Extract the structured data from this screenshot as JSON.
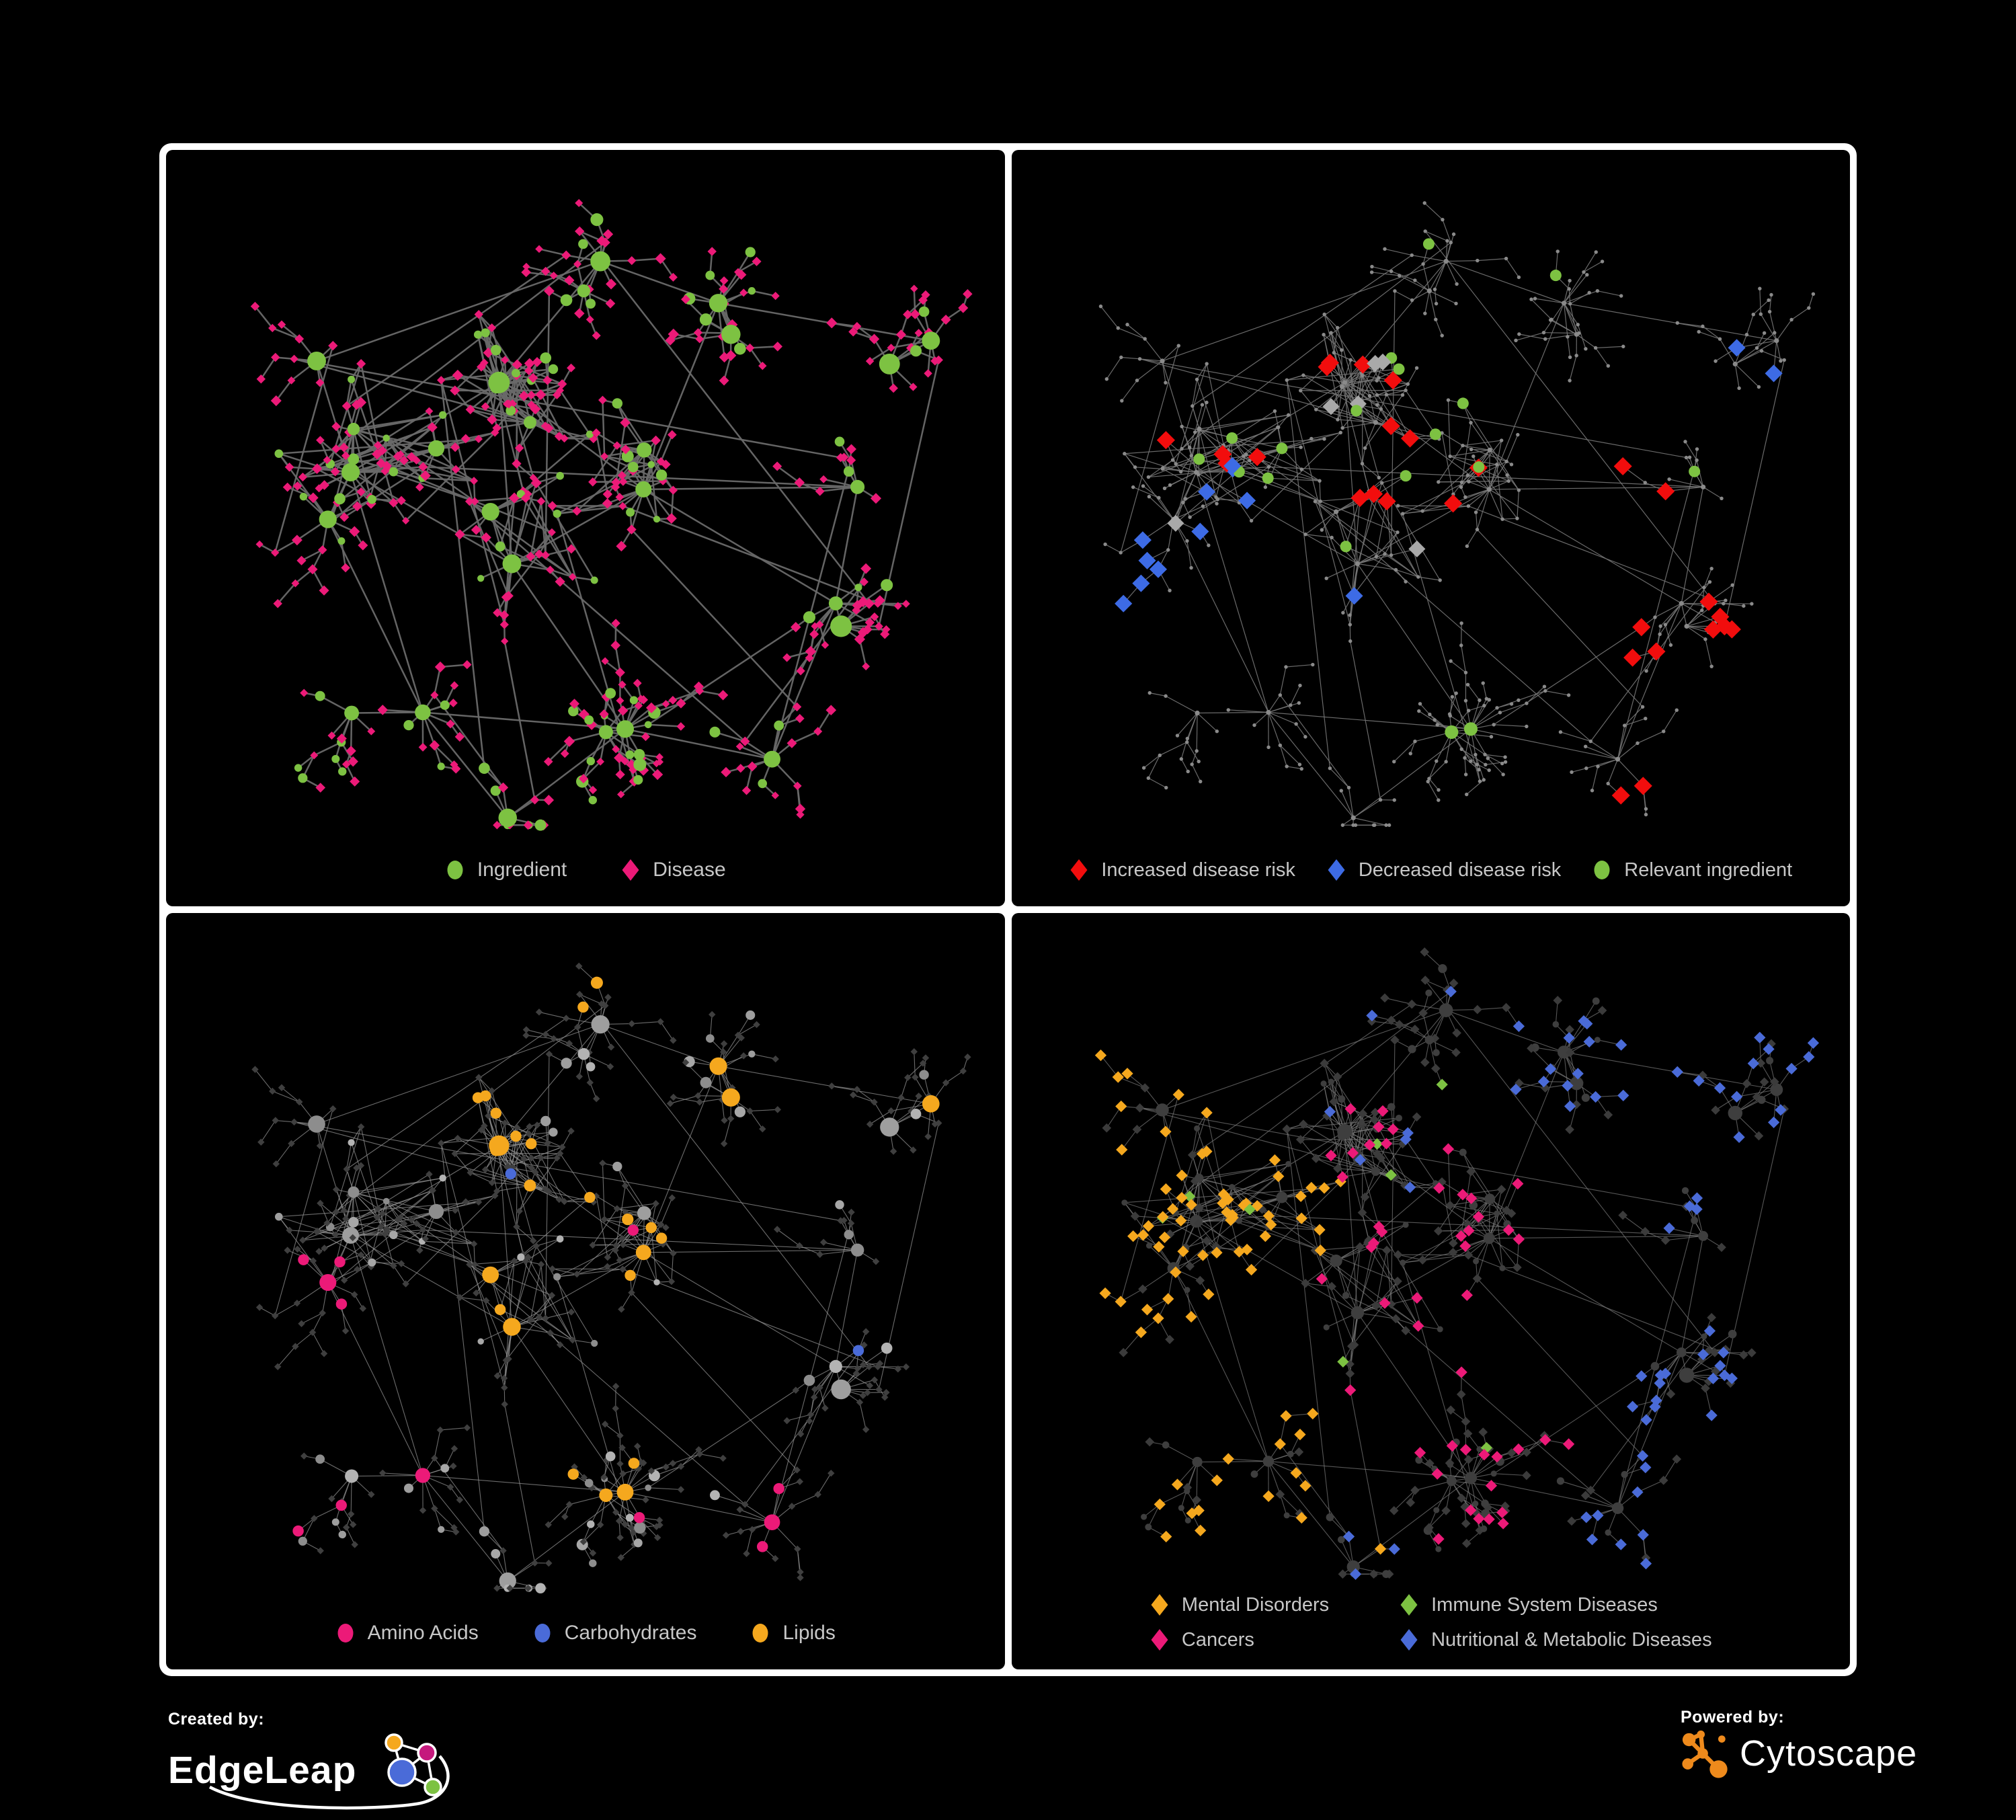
{
  "panels": [
    {
      "id": "ingredient-disease",
      "legend_layout": "row",
      "legend": [
        {
          "shape": "circle",
          "color": "#7DC242",
          "label": "Ingredient"
        },
        {
          "shape": "diamond",
          "color": "#EC1A78",
          "label": "Disease"
        }
      ],
      "style": {
        "mode": "two-tone",
        "edge": {
          "color": "#696969",
          "width": 2.5,
          "opacity": 0.95
        },
        "colors": {
          "circle": "#7DC242",
          "diamond": "#EC1A78"
        }
      }
    },
    {
      "id": "disease-risk",
      "legend_layout": "row-tight",
      "legend": [
        {
          "shape": "diamond",
          "color": "#F20D0D",
          "label": "Increased disease risk"
        },
        {
          "shape": "diamond",
          "color": "#3D6BE5",
          "label": "Decreased disease risk"
        },
        {
          "shape": "circle",
          "color": "#7DC242",
          "label": "Relevant ingredient"
        }
      ],
      "style": {
        "mode": "risk",
        "edge": {
          "color": "#757575",
          "width": 1.2,
          "opacity": 0.9
        },
        "colors": {
          "base": "#8A8A8A",
          "increased": "#F20D0D",
          "decreased": "#3D6BE5",
          "unchanged": "#A9A9A9",
          "relevant": "#7DC242"
        }
      }
    },
    {
      "id": "macronutrients",
      "legend_layout": "row",
      "legend": [
        {
          "shape": "circle",
          "color": "#EC1A78",
          "label": "Amino Acids"
        },
        {
          "shape": "circle",
          "color": "#4A6BD8",
          "label": "Carbohydrates"
        },
        {
          "shape": "circle",
          "color": "#F5A81E",
          "label": "Lipids"
        }
      ],
      "style": {
        "mode": "nutrients",
        "edge": {
          "color": "#8F8F8F",
          "width": 1.1,
          "opacity": 0.75
        },
        "colors": {
          "amino_acids": "#EC1A78",
          "carbohydrates": "#4A6BD8",
          "lipids": "#F5A81E",
          "other_diamond": "#3F3F3F",
          "grays": [
            "#9E9E9E",
            "#8D8D8D",
            "#B3B3B3",
            "#A7A7A7"
          ]
        }
      }
    },
    {
      "id": "disease-classes",
      "legend_layout": "grid2",
      "legend": [
        {
          "shape": "diamond",
          "color": "#F5A81E",
          "label": "Mental Disorders"
        },
        {
          "shape": "diamond",
          "color": "#7DC242",
          "label": "Immune System Diseases"
        },
        {
          "shape": "diamond",
          "color": "#EC1A78",
          "label": "Cancers"
        },
        {
          "shape": "diamond",
          "color": "#4A6BD8",
          "label": "Nutritional & Metabolic Diseases"
        }
      ],
      "style": {
        "mode": "classes",
        "edge": {
          "color": "#7A7A7A",
          "width": 1.1,
          "opacity": 0.7
        },
        "colors": {
          "mental": "#F5A81E",
          "immune": "#7DC242",
          "cancers": "#EC1A78",
          "metabolic": "#4A6BD8",
          "other": "#3B3B3B",
          "circle_other": "#3E3E3E"
        }
      }
    }
  ],
  "footer": {
    "created_by_label": "Created by:",
    "brand_left": "EdgeLeap",
    "powered_by_label": "Powered by:",
    "brand_right": "Cytoscape",
    "cytoscape_orange": "#EE8A1C",
    "edgeleap_colors": {
      "orange": "#F5A81E",
      "magenta": "#C5197D",
      "blue": "#4A6BD8",
      "green": "#7DC242"
    }
  },
  "canvas": {
    "background": "#000000",
    "frame_color": "#FFFFFF",
    "legend_text_color": "#C7C7C7"
  }
}
